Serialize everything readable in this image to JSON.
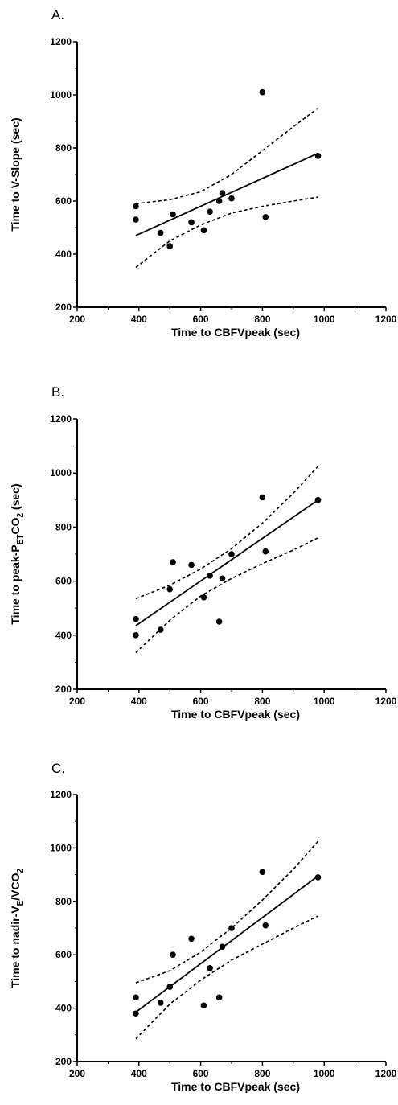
{
  "chart_data": [
    {
      "type": "scatter",
      "panel_label": "A.",
      "xlabel": "Time to CBFVpeak (sec)",
      "ylabel": {
        "text": "Time to V-Slope (sec)"
      },
      "xlim": [
        200,
        1200
      ],
      "ylim": [
        200,
        1200
      ],
      "xticks": [
        "200",
        "400",
        "600",
        "800",
        "1000",
        "1200"
      ],
      "yticks": [
        "200",
        "400",
        "600",
        "800",
        "1000",
        "1200"
      ],
      "grid": false,
      "points": [
        {
          "x": 390,
          "y": 580
        },
        {
          "x": 390,
          "y": 530
        },
        {
          "x": 470,
          "y": 480
        },
        {
          "x": 500,
          "y": 430
        },
        {
          "x": 510,
          "y": 550
        },
        {
          "x": 570,
          "y": 520
        },
        {
          "x": 610,
          "y": 490
        },
        {
          "x": 630,
          "y": 560
        },
        {
          "x": 660,
          "y": 600
        },
        {
          "x": 670,
          "y": 630
        },
        {
          "x": 700,
          "y": 610
        },
        {
          "x": 800,
          "y": 1010
        },
        {
          "x": 810,
          "y": 540
        },
        {
          "x": 980,
          "y": 770
        }
      ],
      "regression": {
        "x": [
          390,
          980
        ],
        "y": [
          470,
          780
        ]
      },
      "confidence_band": {
        "x": [
          390,
          500,
          600,
          700,
          800,
          900,
          980
        ],
        "upper": [
          590,
          605,
          635,
          700,
          790,
          880,
          950
        ],
        "lower": [
          350,
          450,
          510,
          555,
          580,
          600,
          615
        ]
      }
    },
    {
      "type": "scatter",
      "panel_label": "B.",
      "xlabel": "Time to CBFVpeak (sec)",
      "ylabel": {
        "text": "Time to peak-P",
        "sub": "ET",
        "text2": "CO",
        "sub2": "2",
        "text3": " (sec)"
      },
      "xlim": [
        200,
        1200
      ],
      "ylim": [
        200,
        1200
      ],
      "xticks": [
        "200",
        "400",
        "600",
        "800",
        "1000",
        "1200"
      ],
      "yticks": [
        "200",
        "400",
        "600",
        "800",
        "1000",
        "1200"
      ],
      "grid": false,
      "points": [
        {
          "x": 390,
          "y": 460
        },
        {
          "x": 390,
          "y": 400
        },
        {
          "x": 470,
          "y": 420
        },
        {
          "x": 500,
          "y": 570
        },
        {
          "x": 510,
          "y": 670
        },
        {
          "x": 570,
          "y": 660
        },
        {
          "x": 610,
          "y": 540
        },
        {
          "x": 630,
          "y": 620
        },
        {
          "x": 660,
          "y": 450
        },
        {
          "x": 670,
          "y": 610
        },
        {
          "x": 700,
          "y": 700
        },
        {
          "x": 800,
          "y": 910
        },
        {
          "x": 810,
          "y": 710
        },
        {
          "x": 980,
          "y": 900
        }
      ],
      "regression": {
        "x": [
          390,
          980
        ],
        "y": [
          435,
          900
        ]
      },
      "confidence_band": {
        "x": [
          390,
          500,
          600,
          700,
          800,
          900,
          980
        ],
        "upper": [
          535,
          585,
          645,
          720,
          815,
          925,
          1025
        ],
        "lower": [
          335,
          455,
          545,
          610,
          665,
          715,
          760
        ]
      }
    },
    {
      "type": "scatter",
      "panel_label": "C.",
      "xlabel": "Time to CBFVpeak (sec)",
      "ylabel": {
        "text": "Time to nadir-V",
        "sub": "E",
        "text2": "/VCO",
        "sub2": "2",
        "text3": ""
      },
      "xlim": [
        200,
        1200
      ],
      "ylim": [
        200,
        1200
      ],
      "xticks": [
        "200",
        "400",
        "600",
        "800",
        "1000",
        "1200"
      ],
      "yticks": [
        "200",
        "400",
        "600",
        "800",
        "1000",
        "1200"
      ],
      "grid": false,
      "points": [
        {
          "x": 390,
          "y": 440
        },
        {
          "x": 390,
          "y": 380
        },
        {
          "x": 470,
          "y": 420
        },
        {
          "x": 500,
          "y": 480
        },
        {
          "x": 510,
          "y": 600
        },
        {
          "x": 570,
          "y": 660
        },
        {
          "x": 610,
          "y": 410
        },
        {
          "x": 630,
          "y": 550
        },
        {
          "x": 660,
          "y": 440
        },
        {
          "x": 670,
          "y": 630
        },
        {
          "x": 700,
          "y": 700
        },
        {
          "x": 800,
          "y": 910
        },
        {
          "x": 810,
          "y": 710
        },
        {
          "x": 980,
          "y": 890
        }
      ],
      "regression": {
        "x": [
          390,
          980
        ],
        "y": [
          385,
          895
        ]
      },
      "confidence_band": {
        "x": [
          390,
          500,
          600,
          700,
          800,
          900,
          980
        ],
        "upper": [
          495,
          540,
          610,
          700,
          805,
          920,
          1025
        ],
        "lower": [
          285,
          415,
          505,
          580,
          640,
          700,
          745
        ]
      }
    }
  ]
}
